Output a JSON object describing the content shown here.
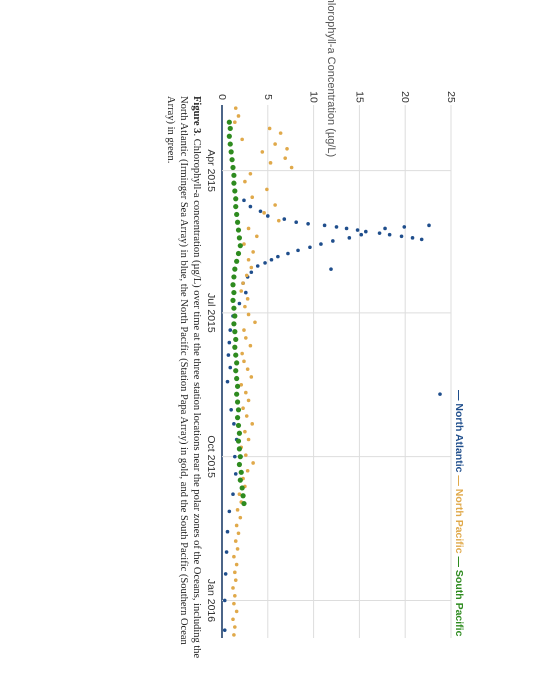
{
  "chart_data": {
    "type": "scatter",
    "ylabel": "Chlorophyll-a Concentration (µg/L)",
    "xlabel": "",
    "ylim": [
      0,
      25
    ],
    "yticks": [
      "0",
      "5",
      "10",
      "15",
      "20",
      "25"
    ],
    "x_tick_labels": [
      "Apr 2015",
      "Jul 2015",
      "Oct 2015",
      "Jan 2016"
    ],
    "x_ticks": [
      "2015-04-01",
      "2015-07-01",
      "2015-10-01",
      "2016-01-01"
    ],
    "xlim": [
      "2015-02-18",
      "2016-01-25"
    ],
    "grid": true,
    "orientation": "rotated 90° clockwise",
    "legend_placement": "top",
    "legend": [
      {
        "label": "North Atlantic",
        "color": "#1f4e8c"
      },
      {
        "label": "North Pacific",
        "color": "#e0a94a"
      },
      {
        "label": "South Pacific",
        "color": "#2e8b1f"
      }
    ],
    "series": [
      {
        "name": "North Atlantic",
        "color": "#1f4e8c",
        "points": [
          [
            "2015-04-20",
            2.4
          ],
          [
            "2015-04-24",
            3.1
          ],
          [
            "2015-04-27",
            4.2
          ],
          [
            "2015-04-30",
            5.0
          ],
          [
            "2015-05-02",
            6.8
          ],
          [
            "2015-05-04",
            8.1
          ],
          [
            "2015-05-05",
            9.4
          ],
          [
            "2015-05-06",
            11.2
          ],
          [
            "2015-05-07",
            12.5
          ],
          [
            "2015-05-08",
            13.6
          ],
          [
            "2015-05-09",
            14.8
          ],
          [
            "2015-05-10",
            15.7
          ],
          [
            "2015-05-11",
            17.2
          ],
          [
            "2015-05-12",
            18.3
          ],
          [
            "2015-05-13",
            19.6
          ],
          [
            "2015-05-14",
            20.8
          ],
          [
            "2015-05-15",
            21.8
          ],
          [
            "2015-05-06",
            22.6
          ],
          [
            "2015-05-07",
            19.9
          ],
          [
            "2015-05-08",
            17.8
          ],
          [
            "2015-05-12",
            15.2
          ],
          [
            "2015-05-14",
            13.9
          ],
          [
            "2015-05-16",
            12.1
          ],
          [
            "2015-05-18",
            10.8
          ],
          [
            "2015-05-20",
            9.6
          ],
          [
            "2015-05-22",
            8.3
          ],
          [
            "2015-05-24",
            7.2
          ],
          [
            "2015-05-26",
            6.1
          ],
          [
            "2015-05-28",
            5.4
          ],
          [
            "2015-05-30",
            4.7
          ],
          [
            "2015-06-01",
            3.9
          ],
          [
            "2015-06-03",
            11.9
          ],
          [
            "2015-06-05",
            3.2
          ],
          [
            "2015-06-08",
            2.8
          ],
          [
            "2015-06-12",
            2.3
          ],
          [
            "2015-06-18",
            2.6
          ],
          [
            "2015-06-25",
            1.9
          ],
          [
            "2015-07-03",
            1.2
          ],
          [
            "2015-07-12",
            0.9
          ],
          [
            "2015-07-20",
            0.8
          ],
          [
            "2015-07-28",
            0.7
          ],
          [
            "2015-08-05",
            0.9
          ],
          [
            "2015-08-14",
            0.6
          ],
          [
            "2015-08-22",
            23.8
          ],
          [
            "2015-09-01",
            1.0
          ],
          [
            "2015-09-10",
            1.3
          ],
          [
            "2015-09-20",
            1.6
          ],
          [
            "2015-10-01",
            1.4
          ],
          [
            "2015-10-12",
            1.5
          ],
          [
            "2015-10-25",
            1.2
          ],
          [
            "2015-11-05",
            0.8
          ],
          [
            "2015-11-18",
            0.6
          ],
          [
            "2015-12-01",
            0.5
          ],
          [
            "2015-12-15",
            0.4
          ],
          [
            "2016-01-01",
            0.3
          ],
          [
            "2016-01-20",
            0.3
          ]
        ]
      },
      {
        "name": "North Pacific",
        "color": "#e0a94a",
        "points": [
          [
            "2015-02-20",
            1.5
          ],
          [
            "2015-02-25",
            1.8
          ],
          [
            "2015-03-01",
            1.4
          ],
          [
            "2015-03-05",
            5.2
          ],
          [
            "2015-03-08",
            6.4
          ],
          [
            "2015-03-12",
            2.2
          ],
          [
            "2015-03-15",
            5.8
          ],
          [
            "2015-03-18",
            7.1
          ],
          [
            "2015-03-20",
            4.4
          ],
          [
            "2015-03-24",
            6.9
          ],
          [
            "2015-03-27",
            5.3
          ],
          [
            "2015-03-30",
            7.6
          ],
          [
            "2015-04-03",
            3.1
          ],
          [
            "2015-04-08",
            2.5
          ],
          [
            "2015-04-13",
            4.9
          ],
          [
            "2015-04-18",
            3.3
          ],
          [
            "2015-04-23",
            5.8
          ],
          [
            "2015-04-28",
            4.6
          ],
          [
            "2015-05-03",
            6.2
          ],
          [
            "2015-05-08",
            2.9
          ],
          [
            "2015-05-13",
            3.8
          ],
          [
            "2015-05-18",
            2.4
          ],
          [
            "2015-05-23",
            3.4
          ],
          [
            "2015-05-28",
            2.9
          ],
          [
            "2015-06-02",
            3.2
          ],
          [
            "2015-06-07",
            2.7
          ],
          [
            "2015-06-12",
            2.3
          ],
          [
            "2015-06-17",
            2.1
          ],
          [
            "2015-06-22",
            2.8
          ],
          [
            "2015-06-27",
            2.5
          ],
          [
            "2015-07-02",
            2.9
          ],
          [
            "2015-07-07",
            3.6
          ],
          [
            "2015-07-12",
            2.4
          ],
          [
            "2015-07-17",
            2.6
          ],
          [
            "2015-07-22",
            3.1
          ],
          [
            "2015-07-27",
            2.2
          ],
          [
            "2015-08-01",
            2.4
          ],
          [
            "2015-08-06",
            2.8
          ],
          [
            "2015-08-11",
            3.2
          ],
          [
            "2015-08-16",
            2.1
          ],
          [
            "2015-08-21",
            2.6
          ],
          [
            "2015-08-26",
            2.9
          ],
          [
            "2015-08-31",
            2.3
          ],
          [
            "2015-09-05",
            2.7
          ],
          [
            "2015-09-10",
            3.3
          ],
          [
            "2015-09-15",
            2.5
          ],
          [
            "2015-09-20",
            2.9
          ],
          [
            "2015-09-25",
            2.1
          ],
          [
            "2015-09-30",
            2.6
          ],
          [
            "2015-10-05",
            3.4
          ],
          [
            "2015-10-10",
            2.8
          ],
          [
            "2015-10-15",
            2.3
          ],
          [
            "2015-10-20",
            2.5
          ],
          [
            "2015-10-25",
            1.9
          ],
          [
            "2015-10-30",
            2.1
          ],
          [
            "2015-11-04",
            1.7
          ],
          [
            "2015-11-09",
            2.0
          ],
          [
            "2015-11-14",
            1.6
          ],
          [
            "2015-11-19",
            1.8
          ],
          [
            "2015-11-24",
            1.5
          ],
          [
            "2015-11-29",
            1.7
          ],
          [
            "2015-12-04",
            1.3
          ],
          [
            "2015-12-09",
            1.6
          ],
          [
            "2015-12-14",
            1.4
          ],
          [
            "2015-12-19",
            1.5
          ],
          [
            "2015-12-24",
            1.2
          ],
          [
            "2015-12-29",
            1.4
          ],
          [
            "2016-01-03",
            1.3
          ],
          [
            "2016-01-08",
            1.6
          ],
          [
            "2016-01-13",
            1.2
          ],
          [
            "2016-01-18",
            1.4
          ],
          [
            "2016-01-23",
            1.3
          ]
        ]
      },
      {
        "name": "South Pacific",
        "color": "#2e8b1f",
        "points": [
          [
            "2015-03-01",
            0.8
          ],
          [
            "2015-03-05",
            0.9
          ],
          [
            "2015-03-10",
            0.8
          ],
          [
            "2015-03-15",
            0.9
          ],
          [
            "2015-03-20",
            1.0
          ],
          [
            "2015-03-25",
            1.1
          ],
          [
            "2015-03-30",
            1.2
          ],
          [
            "2015-04-04",
            1.3
          ],
          [
            "2015-04-09",
            1.3
          ],
          [
            "2015-04-14",
            1.4
          ],
          [
            "2015-04-19",
            1.5
          ],
          [
            "2015-04-24",
            1.5
          ],
          [
            "2015-04-29",
            1.6
          ],
          [
            "2015-05-04",
            1.7
          ],
          [
            "2015-05-09",
            1.8
          ],
          [
            "2015-05-14",
            1.9
          ],
          [
            "2015-05-19",
            2.0
          ],
          [
            "2015-05-24",
            1.8
          ],
          [
            "2015-05-29",
            1.6
          ],
          [
            "2015-06-03",
            1.4
          ],
          [
            "2015-06-08",
            1.3
          ],
          [
            "2015-06-13",
            1.2
          ],
          [
            "2015-06-18",
            1.3
          ],
          [
            "2015-06-23",
            1.2
          ],
          [
            "2015-06-28",
            1.3
          ],
          [
            "2015-07-03",
            1.4
          ],
          [
            "2015-07-08",
            1.3
          ],
          [
            "2015-07-13",
            1.4
          ],
          [
            "2015-07-18",
            1.5
          ],
          [
            "2015-07-23",
            1.4
          ],
          [
            "2015-07-28",
            1.5
          ],
          [
            "2015-08-02",
            1.6
          ],
          [
            "2015-08-07",
            1.5
          ],
          [
            "2015-08-12",
            1.6
          ],
          [
            "2015-08-17",
            1.7
          ],
          [
            "2015-08-22",
            1.6
          ],
          [
            "2015-08-27",
            1.7
          ],
          [
            "2015-09-01",
            1.8
          ],
          [
            "2015-09-06",
            1.7
          ],
          [
            "2015-09-11",
            1.8
          ],
          [
            "2015-09-16",
            1.9
          ],
          [
            "2015-09-21",
            1.8
          ],
          [
            "2015-09-26",
            1.9
          ],
          [
            "2015-10-01",
            2.0
          ],
          [
            "2015-10-06",
            1.9
          ],
          [
            "2015-10-11",
            2.1
          ],
          [
            "2015-10-16",
            2.0
          ],
          [
            "2015-10-21",
            2.2
          ],
          [
            "2015-10-26",
            2.3
          ],
          [
            "2015-10-31",
            2.4
          ]
        ]
      }
    ]
  },
  "caption": {
    "label": "Figure 3",
    "line1": ". Chlorophyll-a concentration (µg/L) over time at the three station locations near the polar zones of the Oceans, including the",
    "line2": "North Atlantic (Irminger Sea Array) in blue, the North Pacific (Station Papa Array) in gold, and the South Pacific (Southern Ocean",
    "line3": "Array) in green."
  }
}
